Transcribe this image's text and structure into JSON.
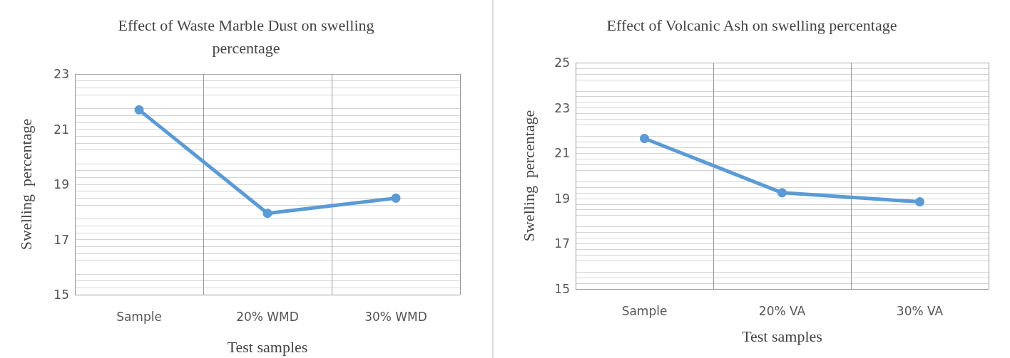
{
  "chart_data": [
    {
      "type": "line",
      "title": "Effect of Waste Marble Dust on swelling\npercentage",
      "xlabel": "Test samples",
      "ylabel": "Swelling  percentage",
      "categories": [
        "Sample",
        "20% WMD",
        "30% WMD"
      ],
      "series": [
        {
          "color": "#5b9bd5",
          "values": [
            21.7,
            17.95,
            18.5
          ]
        }
      ],
      "ylim": [
        15,
        23
      ],
      "yticks": [
        15,
        17,
        19,
        21,
        23
      ],
      "grid": true,
      "marker": "circle",
      "line_style": "solid"
    },
    {
      "type": "line",
      "title": "Effect of Volcanic Ash on swelling percentage",
      "xlabel": "Test samples",
      "ylabel": "Swelling  percentage",
      "categories": [
        "Sample",
        "20% VA",
        "30% VA"
      ],
      "series": [
        {
          "color": "#5b9bd5",
          "values": [
            21.65,
            19.25,
            18.85
          ]
        }
      ],
      "ylim": [
        15,
        25
      ],
      "yticks": [
        15,
        17,
        19,
        21,
        23,
        25
      ],
      "grid": true,
      "marker": "circle",
      "line_style": "solid"
    }
  ]
}
